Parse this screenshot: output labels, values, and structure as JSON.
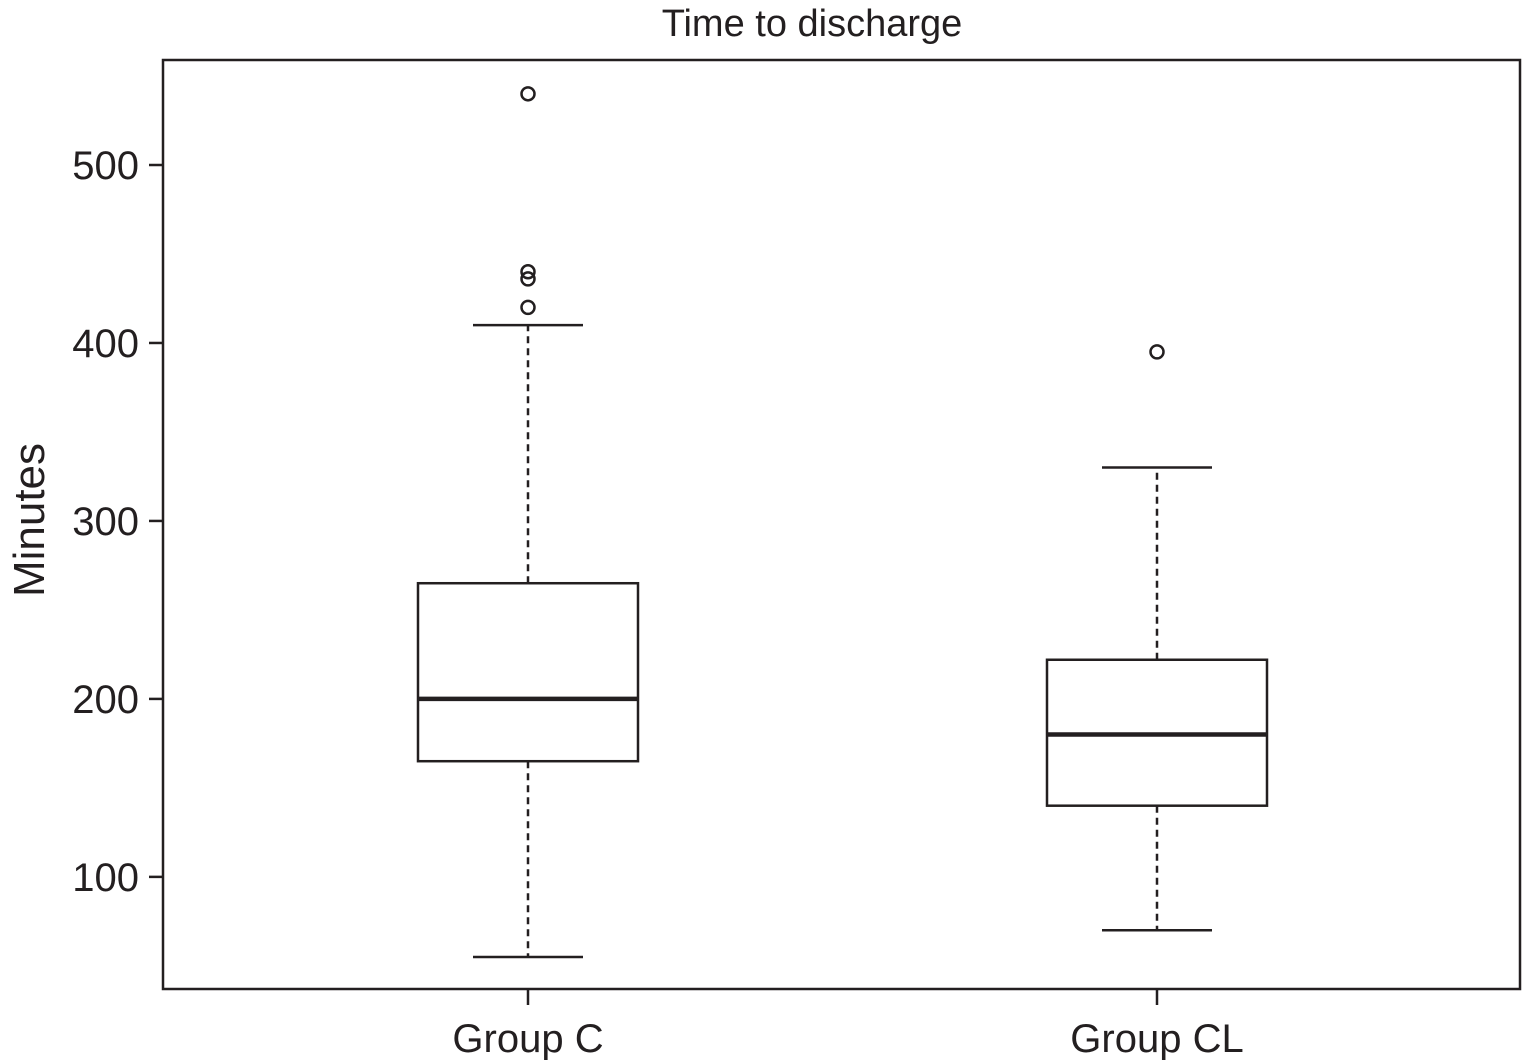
{
  "chart_data": {
    "type": "boxplot",
    "title": "Time to discharge",
    "xlabel": "",
    "ylabel": "Minutes",
    "ylim": [
      37,
      559
    ],
    "yticks": [
      100,
      200,
      300,
      400,
      500
    ],
    "categories": [
      "Group C",
      "Group CL"
    ],
    "boxes": [
      {
        "category": "Group C",
        "whisker_low": 55,
        "q1": 165,
        "median": 200,
        "q3": 265,
        "whisker_high": 410,
        "outliers": [
          540,
          440,
          436,
          420
        ]
      },
      {
        "category": "Group CL",
        "whisker_low": 70,
        "q1": 140,
        "median": 180,
        "q3": 222,
        "whisker_high": 330,
        "outliers": [
          395
        ]
      }
    ],
    "grid": false,
    "colors": {
      "ink": "#231f20",
      "background": "#ffffff"
    }
  }
}
